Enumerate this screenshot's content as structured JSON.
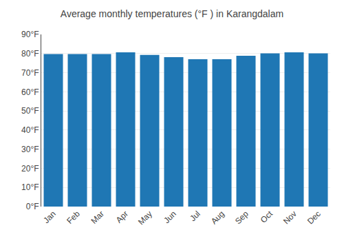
{
  "chart_data": {
    "type": "bar",
    "title": "Average monthly temperatures (°F ) in Karangdalam",
    "categories": [
      "Jan",
      "Feb",
      "Mar",
      "Apr",
      "May",
      "Jun",
      "Jul",
      "Aug",
      "Sep",
      "Oct",
      "Nov",
      "Dec"
    ],
    "values": [
      79.7,
      79.7,
      79.7,
      80.6,
      79.3,
      78.1,
      77.0,
      77.0,
      78.8,
      80.1,
      80.6,
      80.1
    ],
    "ylim": [
      0,
      90
    ],
    "yticks": [
      {
        "value": 0,
        "label": "0°F"
      },
      {
        "value": 10,
        "label": "10°F"
      },
      {
        "value": 20,
        "label": "20°F"
      },
      {
        "value": 30,
        "label": "30°F"
      },
      {
        "value": 40,
        "label": "40°F"
      },
      {
        "value": 50,
        "label": "50°F"
      },
      {
        "value": 60,
        "label": "60°F"
      },
      {
        "value": 70,
        "label": "70°F"
      },
      {
        "value": 80,
        "label": "80°F"
      },
      {
        "value": 90,
        "label": "90°F"
      }
    ],
    "grid": true
  }
}
